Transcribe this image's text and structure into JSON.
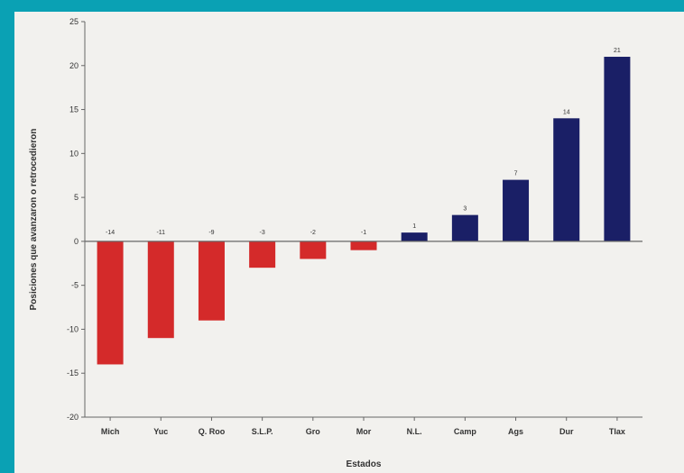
{
  "colors": {
    "frame": "#0aa1b4",
    "background": "#f2f1ee",
    "negative": "#d42a2a",
    "positive": "#1a1f66",
    "axis": "#666666"
  },
  "chart_data": {
    "type": "bar",
    "categories": [
      "Mich",
      "Yuc",
      "Q. Roo",
      "S.L.P.",
      "Gro",
      "Mor",
      "N.L.",
      "Camp",
      "Ags",
      "Dur",
      "Tlax"
    ],
    "values": [
      -14,
      -11,
      -9,
      -3,
      -2,
      -1,
      1,
      3,
      7,
      14,
      21
    ],
    "data_labels": [
      "-14",
      "-11",
      "-9",
      "-3",
      "-2",
      "-1",
      "1",
      "3",
      "7",
      "14",
      "21"
    ],
    "xlabel": "Estados",
    "ylabel": "Posiciones que avanzaron o retrocedieron",
    "ylim": [
      -20,
      25
    ],
    "yticks": [
      25,
      20,
      15,
      10,
      5,
      0,
      -5,
      -10,
      -15,
      -20
    ],
    "ytick_labels": [
      "25",
      "20",
      "15",
      "10",
      "5",
      "0",
      "-5",
      "-10",
      "-15",
      "-20"
    ],
    "grid": false,
    "legend": "none"
  }
}
